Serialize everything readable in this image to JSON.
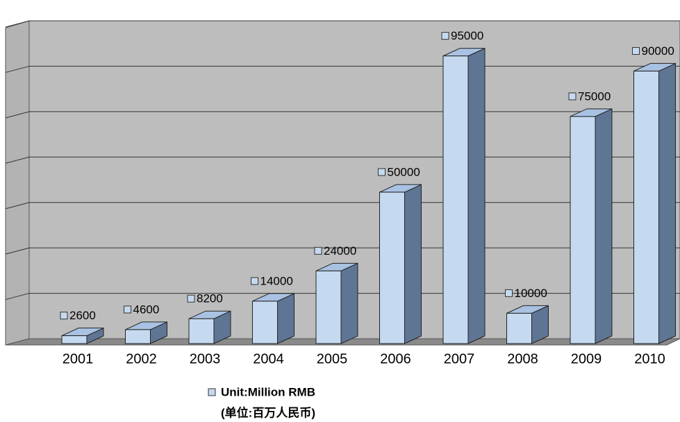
{
  "chart_data": {
    "type": "bar3d",
    "categories": [
      "2001",
      "2002",
      "2003",
      "2004",
      "2005",
      "2006",
      "2007",
      "2008",
      "2009",
      "2010"
    ],
    "series": [
      {
        "name": "Unit:Million RMB",
        "color": "#c5daf0",
        "values": [
          2600,
          4600,
          8200,
          14000,
          24000,
          50000,
          95000,
          10000,
          75000,
          90000
        ]
      }
    ],
    "note": "(单位:百万人民币)",
    "ylim": [
      0,
      105000
    ],
    "yticks": [
      0,
      15000,
      30000,
      45000,
      60000,
      75000,
      90000,
      105000
    ],
    "grid": true
  }
}
